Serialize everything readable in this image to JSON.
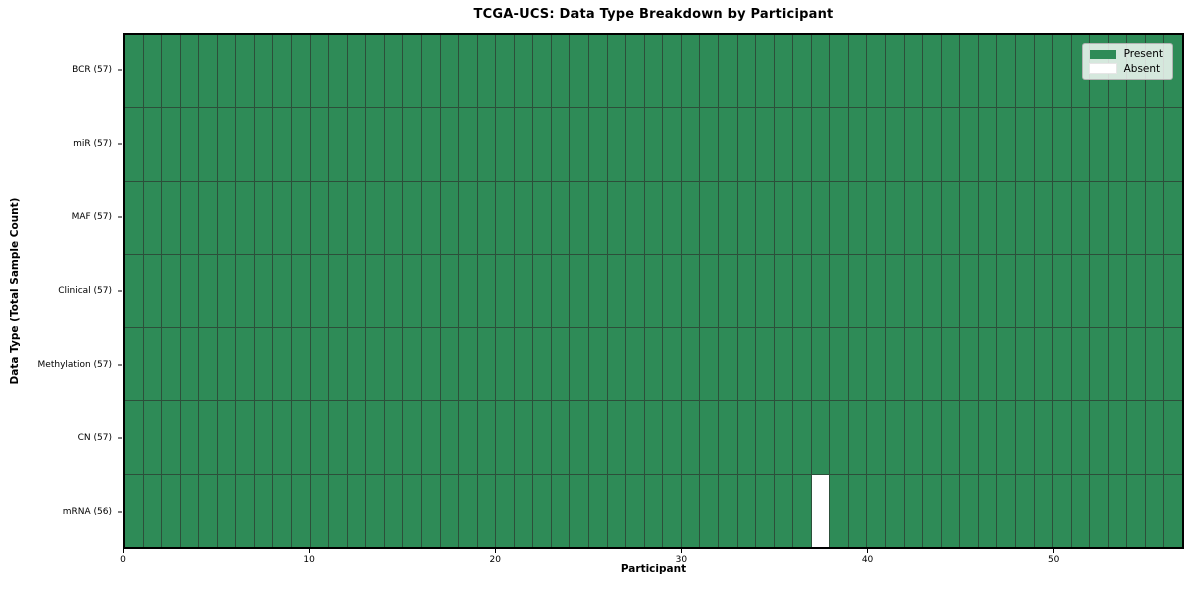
{
  "chart_data": {
    "type": "heatmap",
    "title": "TCGA-UCS: Data Type Breakdown by Participant",
    "xlabel": "Participant",
    "ylabel": "Data Type (Total Sample Count)",
    "x_range": [
      0,
      57
    ],
    "x_ticks": [
      0,
      10,
      20,
      30,
      40,
      50
    ],
    "n_participants": 57,
    "rows": [
      {
        "label": "BCR (57)",
        "count": 57,
        "absent_participants": []
      },
      {
        "label": "miR (57)",
        "count": 57,
        "absent_participants": []
      },
      {
        "label": "MAF (57)",
        "count": 57,
        "absent_participants": []
      },
      {
        "label": "Clinical (57)",
        "count": 57,
        "absent_participants": []
      },
      {
        "label": "Methylation (57)",
        "count": 57,
        "absent_participants": []
      },
      {
        "label": "CN (57)",
        "count": 57,
        "absent_participants": []
      },
      {
        "label": "mRNA (56)",
        "count": 56,
        "absent_participants": [
          37
        ]
      }
    ],
    "legend": [
      {
        "label": "Present",
        "color": "#2e8b57"
      },
      {
        "label": "Absent",
        "color": "#ffffff"
      }
    ],
    "colors": {
      "present": "#2e8b57",
      "absent": "#ffffff",
      "cell_edge": "#2c4f3a",
      "plot_border": "#000000"
    },
    "legend_position": "upper right",
    "grid": "cell-edges"
  }
}
